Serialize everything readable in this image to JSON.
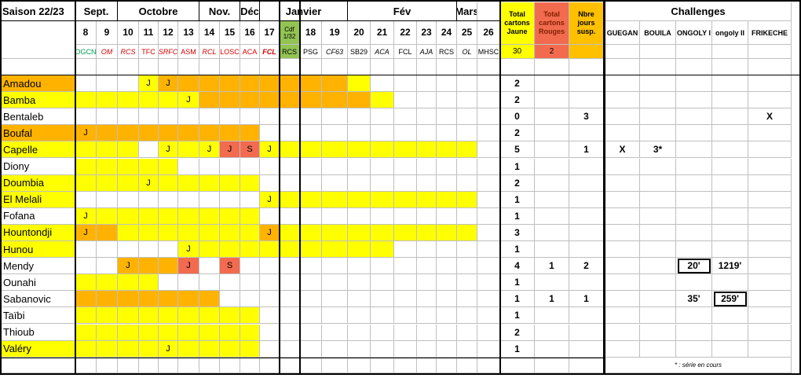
{
  "season": "Saison 22/23",
  "months": [
    {
      "label": "Sept.",
      "from": 0,
      "span": 2
    },
    {
      "label": "Octobre",
      "from": 2,
      "span": 4
    },
    {
      "label": "Nov.",
      "from": 6,
      "span": 2
    },
    {
      "label": "Déc",
      "from": 8,
      "span": 1
    },
    {
      "label": "Janvier",
      "from": 9,
      "span": 4
    },
    {
      "label": "Fév",
      "from": 13,
      "span": 5
    },
    {
      "label": "Mars",
      "from": 18,
      "span": 1
    }
  ],
  "matchdays": [
    {
      "day": "8",
      "opp": "OGCN",
      "opp_color": "#00a050",
      "bold": false,
      "italic": false
    },
    {
      "day": "9",
      "opp": "OM",
      "opp_color": "#d00000",
      "bold": false,
      "italic": true
    },
    {
      "day": "10",
      "opp": "RCS",
      "opp_color": "#d00000",
      "bold": false,
      "italic": true
    },
    {
      "day": "11",
      "opp": "TFC",
      "opp_color": "#d00000",
      "bold": false,
      "italic": false
    },
    {
      "day": "12",
      "opp": "SRFC",
      "opp_color": "#d00000",
      "bold": false,
      "italic": true
    },
    {
      "day": "13",
      "opp": "ASM",
      "opp_color": "#d00000",
      "bold": false,
      "italic": false
    },
    {
      "day": "14",
      "opp": "RCL",
      "opp_color": "#d00000",
      "bold": false,
      "italic": true
    },
    {
      "day": "15",
      "opp": "LOSC",
      "opp_color": "#d00000",
      "bold": false,
      "italic": false
    },
    {
      "day": "16",
      "opp": "ACA",
      "opp_color": "#d00000",
      "bold": false,
      "italic": false
    },
    {
      "day": "17",
      "opp": "FCL",
      "opp_color": "#d00000",
      "bold": true,
      "italic": true
    },
    {
      "day": "Cdf\n1/32",
      "opp": "RCS",
      "opp_color": "#000000",
      "bold": false,
      "italic": false,
      "cup": true
    },
    {
      "day": "18",
      "opp": "PSG",
      "opp_color": "#000000",
      "bold": false,
      "italic": false
    },
    {
      "day": "19",
      "opp": "CF63",
      "opp_color": "#000000",
      "bold": false,
      "italic": true
    },
    {
      "day": "20",
      "opp": "SB29",
      "opp_color": "#000000",
      "bold": false,
      "italic": false
    },
    {
      "day": "21",
      "opp": "ACA",
      "opp_color": "#000000",
      "bold": false,
      "italic": true
    },
    {
      "day": "22",
      "opp": "FCL",
      "opp_color": "#000000",
      "bold": false,
      "italic": false
    },
    {
      "day": "23",
      "opp": "AJA",
      "opp_color": "#000000",
      "bold": false,
      "italic": true
    },
    {
      "day": "24",
      "opp": "RCS",
      "opp_color": "#000000",
      "bold": false,
      "italic": false
    },
    {
      "day": "25",
      "opp": "OL",
      "opp_color": "#000000",
      "bold": false,
      "italic": true
    },
    {
      "day": "26",
      "opp": "MHSC",
      "opp_color": "#000000",
      "bold": false,
      "italic": false
    }
  ],
  "totals_headers": {
    "yellow": "Total cartons Jaune",
    "red": "Total cartons Rouges",
    "susp": "Nbre jours susp."
  },
  "totals_summary": {
    "yellow": "30",
    "red": "2",
    "susp": ""
  },
  "challenges": {
    "title": "Challenges",
    "columns": [
      "GUEGAN",
      "BOUILA",
      "ONGOLY I",
      "ongoly II",
      "FRIKECHE"
    ]
  },
  "colors": {
    "yellow": "#ffff00",
    "orange": "#ffb300",
    "red": "#f26b4f",
    "cup": "#92c353",
    "header_yellow": "#ffff00",
    "header_orange": "#ffc000",
    "header_red": "#f26b4f"
  },
  "players": [
    {
      "name": "Amadou",
      "name_color": "orange",
      "cells": [
        "",
        "",
        "",
        "J",
        "J",
        "",
        "",
        "",
        "",
        "",
        "",
        "",
        "",
        "",
        "",
        "",
        "",
        "",
        "",
        ""
      ],
      "fill": [
        "",
        "",
        "",
        "yellow",
        "orange",
        "orange",
        "orange",
        "orange",
        "orange",
        "orange",
        "orange",
        "orange",
        "orange",
        "yellow",
        "",
        "",
        "",
        "",
        "",
        ""
      ],
      "yellow": "2",
      "red": "",
      "susp": "",
      "ch": [
        "",
        "",
        "",
        "",
        ""
      ]
    },
    {
      "name": "Bamba",
      "name_color": "yellow",
      "cells": [
        "",
        "",
        "",
        "",
        "",
        "J",
        "",
        "",
        "",
        "",
        "",
        "",
        "",
        "",
        "",
        "",
        "",
        "",
        "",
        ""
      ],
      "fill": [
        "yellow",
        "yellow",
        "yellow",
        "yellow",
        "yellow",
        "yellow",
        "orange",
        "orange",
        "orange",
        "orange",
        "orange",
        "orange",
        "orange",
        "orange",
        "yellow",
        "",
        "",
        "",
        "",
        ""
      ],
      "yellow": "2",
      "red": "",
      "susp": "",
      "ch": [
        "",
        "",
        "",
        "",
        ""
      ]
    },
    {
      "name": "Bentaleb",
      "name_color": "",
      "cells": [
        "",
        "",
        "",
        "",
        "",
        "",
        "",
        "",
        "",
        "",
        "",
        "",
        "",
        "",
        "",
        "",
        "",
        "",
        "",
        ""
      ],
      "fill": [
        "",
        "",
        "",
        "",
        "",
        "",
        "",
        "",
        "",
        "",
        "",
        "",
        "",
        "",
        "",
        "",
        "",
        "",
        "",
        ""
      ],
      "yellow": "0",
      "red": "",
      "susp": "3",
      "ch": [
        "",
        "",
        "",
        "",
        "X"
      ]
    },
    {
      "name": "Boufal",
      "name_color": "orange",
      "cells": [
        "J",
        "",
        "",
        "",
        "",
        "",
        "",
        "",
        "",
        "",
        "",
        "",
        "",
        "",
        "",
        "",
        "",
        "",
        "",
        ""
      ],
      "fill": [
        "orange",
        "orange",
        "orange",
        "orange",
        "orange",
        "orange",
        "orange",
        "orange",
        "orange",
        "",
        "",
        "",
        "",
        "",
        "",
        "",
        "",
        "",
        "",
        ""
      ],
      "yellow": "2",
      "red": "",
      "susp": "",
      "ch": [
        "",
        "",
        "",
        "",
        ""
      ]
    },
    {
      "name": "Capelle",
      "name_color": "yellow",
      "cells": [
        "",
        "",
        "",
        "",
        "J",
        "",
        "J",
        "J",
        "S",
        "J",
        "",
        "",
        "",
        "",
        "",
        "",
        "",
        "",
        "",
        ""
      ],
      "fill": [
        "yellow",
        "yellow",
        "yellow",
        "",
        "yellow",
        "yellow",
        "yellow",
        "red",
        "red",
        "yellow",
        "yellow",
        "yellow",
        "yellow",
        "yellow",
        "yellow",
        "yellow",
        "yellow",
        "yellow",
        "yellow",
        ""
      ],
      "yellow": "5",
      "red": "",
      "susp": "1",
      "ch": [
        "X",
        "3*",
        "",
        "",
        ""
      ]
    },
    {
      "name": "Diony",
      "name_color": "",
      "cells": [
        "",
        "",
        "",
        "",
        "",
        "",
        "",
        "",
        "",
        "",
        "",
        "",
        "",
        "",
        "",
        "",
        "",
        "",
        "",
        ""
      ],
      "fill": [
        "yellow",
        "yellow",
        "yellow",
        "yellow",
        "yellow",
        "",
        "",
        "",
        "",
        "",
        "",
        "",
        "",
        "",
        "",
        "",
        "",
        "",
        "",
        ""
      ],
      "yellow": "1",
      "red": "",
      "susp": "",
      "ch": [
        "",
        "",
        "",
        "",
        ""
      ]
    },
    {
      "name": "Doumbia",
      "name_color": "yellow",
      "cells": [
        "",
        "",
        "",
        "J",
        "",
        "",
        "",
        "",
        "",
        "",
        "",
        "",
        "",
        "",
        "",
        "",
        "",
        "",
        "",
        ""
      ],
      "fill": [
        "yellow",
        "yellow",
        "yellow",
        "yellow",
        "yellow",
        "yellow",
        "yellow",
        "yellow",
        "yellow",
        "",
        "",
        "",
        "",
        "",
        "",
        "",
        "",
        "",
        "",
        ""
      ],
      "yellow": "2",
      "red": "",
      "susp": "",
      "ch": [
        "",
        "",
        "",
        "",
        ""
      ]
    },
    {
      "name": "El Melali",
      "name_color": "yellow",
      "cells": [
        "",
        "",
        "",
        "",
        "",
        "",
        "",
        "",
        "",
        "J",
        "",
        "",
        "",
        "",
        "",
        "",
        "",
        "",
        "",
        ""
      ],
      "fill": [
        "",
        "",
        "",
        "",
        "",
        "",
        "",
        "",
        "",
        "yellow",
        "yellow",
        "yellow",
        "yellow",
        "yellow",
        "yellow",
        "yellow",
        "yellow",
        "yellow",
        "yellow",
        ""
      ],
      "yellow": "1",
      "red": "",
      "susp": "",
      "ch": [
        "",
        "",
        "",
        "",
        ""
      ]
    },
    {
      "name": "Fofana",
      "name_color": "",
      "cells": [
        "J",
        "",
        "",
        "",
        "",
        "",
        "",
        "",
        "",
        "",
        "",
        "",
        "",
        "",
        "",
        "",
        "",
        "",
        "",
        ""
      ],
      "fill": [
        "yellow",
        "yellow",
        "yellow",
        "yellow",
        "yellow",
        "yellow",
        "yellow",
        "yellow",
        "yellow",
        "",
        "",
        "",
        "",
        "",
        "",
        "",
        "",
        "",
        "",
        ""
      ],
      "yellow": "1",
      "red": "",
      "susp": "",
      "ch": [
        "",
        "",
        "",
        "",
        ""
      ]
    },
    {
      "name": "Hountondji",
      "name_color": "yellow",
      "cells": [
        "J",
        "",
        "",
        "",
        "",
        "",
        "",
        "",
        "",
        "J",
        "",
        "",
        "",
        "",
        "",
        "",
        "",
        "",
        "",
        ""
      ],
      "fill": [
        "orange",
        "orange",
        "yellow",
        "yellow",
        "yellow",
        "yellow",
        "yellow",
        "yellow",
        "yellow",
        "orange",
        "yellow",
        "yellow",
        "yellow",
        "yellow",
        "yellow",
        "yellow",
        "yellow",
        "yellow",
        "yellow",
        ""
      ],
      "yellow": "3",
      "red": "",
      "susp": "",
      "ch": [
        "",
        "",
        "",
        "",
        ""
      ]
    },
    {
      "name": "Hunou",
      "name_color": "yellow",
      "cells": [
        "",
        "",
        "",
        "",
        "",
        "J",
        "",
        "",
        "",
        "",
        "",
        "",
        "",
        "",
        "",
        "",
        "",
        "",
        "",
        ""
      ],
      "fill": [
        "",
        "",
        "",
        "",
        "",
        "yellow",
        "yellow",
        "yellow",
        "yellow",
        "yellow",
        "yellow",
        "yellow",
        "yellow",
        "yellow",
        "yellow",
        "",
        "",
        "",
        "",
        ""
      ],
      "yellow": "1",
      "red": "",
      "susp": "",
      "ch": [
        "",
        "",
        "",
        "",
        ""
      ]
    },
    {
      "name": "Mendy",
      "name_color": "",
      "cells": [
        "",
        "",
        "J",
        "",
        "",
        "J",
        "",
        "S",
        "",
        "",
        "",
        "",
        "",
        "",
        "",
        "",
        "",
        "",
        "",
        ""
      ],
      "fill": [
        "",
        "",
        "orange",
        "orange",
        "orange",
        "red",
        "",
        "red",
        "",
        "",
        "",
        "",
        "",
        "",
        "",
        "",
        "",
        "",
        "",
        ""
      ],
      "yellow": "4",
      "red": "1",
      "susp": "2",
      "ch": [
        "",
        "",
        "20'",
        "1219'",
        ""
      ]
    },
    {
      "name": "Ounahi",
      "name_color": "",
      "cells": [
        "",
        "",
        "",
        "",
        "",
        "",
        "",
        "",
        "",
        "",
        "",
        "",
        "",
        "",
        "",
        "",
        "",
        "",
        "",
        ""
      ],
      "fill": [
        "yellow",
        "yellow",
        "yellow",
        "yellow",
        "",
        "",
        "",
        "",
        "",
        "",
        "",
        "",
        "",
        "",
        "",
        "",
        "",
        "",
        "",
        ""
      ],
      "yellow": "1",
      "red": "",
      "susp": "",
      "ch": [
        "",
        "",
        "",
        "",
        ""
      ]
    },
    {
      "name": "Sabanovic",
      "name_color": "",
      "cells": [
        "",
        "",
        "",
        "",
        "",
        "",
        "",
        "",
        "",
        "",
        "",
        "",
        "",
        "",
        "",
        "",
        "",
        "",
        "",
        ""
      ],
      "fill": [
        "orange",
        "orange",
        "orange",
        "orange",
        "orange",
        "orange",
        "orange",
        "",
        "",
        "",
        "",
        "",
        "",
        "",
        "",
        "",
        "",
        "",
        "",
        ""
      ],
      "yellow": "1",
      "red": "1",
      "susp": "1",
      "ch": [
        "",
        "",
        "35'",
        "259'",
        ""
      ]
    },
    {
      "name": "Taïbi",
      "name_color": "",
      "cells": [
        "",
        "",
        "",
        "",
        "",
        "",
        "",
        "",
        "",
        "",
        "",
        "",
        "",
        "",
        "",
        "",
        "",
        "",
        "",
        ""
      ],
      "fill": [
        "yellow",
        "yellow",
        "yellow",
        "yellow",
        "yellow",
        "yellow",
        "yellow",
        "yellow",
        "yellow",
        "",
        "",
        "",
        "",
        "",
        "",
        "",
        "",
        "",
        "",
        ""
      ],
      "yellow": "1",
      "red": "",
      "susp": "",
      "ch": [
        "",
        "",
        "",
        "",
        ""
      ]
    },
    {
      "name": "Thioub",
      "name_color": "",
      "cells": [
        "",
        "",
        "",
        "",
        "",
        "",
        "",
        "",
        "",
        "",
        "",
        "",
        "",
        "",
        "",
        "",
        "",
        "",
        "",
        ""
      ],
      "fill": [
        "yellow",
        "yellow",
        "yellow",
        "yellow",
        "yellow",
        "yellow",
        "yellow",
        "yellow",
        "yellow",
        "",
        "",
        "",
        "",
        "",
        "",
        "",
        "",
        "",
        "",
        ""
      ],
      "yellow": "2",
      "red": "",
      "susp": "",
      "ch": [
        "",
        "",
        "",
        "",
        ""
      ]
    },
    {
      "name": "Valéry",
      "name_color": "yellow",
      "cells": [
        "",
        "",
        "",
        "",
        "J",
        "",
        "",
        "",
        "",
        "",
        "",
        "",
        "",
        "",
        "",
        "",
        "",
        "",
        "",
        ""
      ],
      "fill": [
        "yellow",
        "yellow",
        "yellow",
        "yellow",
        "yellow",
        "yellow",
        "yellow",
        "yellow",
        "yellow",
        "",
        "",
        "",
        "",
        "",
        "",
        "",
        "",
        "",
        "",
        ""
      ],
      "yellow": "1",
      "red": "",
      "susp": "",
      "ch": [
        "",
        "",
        "",
        "",
        ""
      ]
    }
  ],
  "footnote": "* : série en cours"
}
